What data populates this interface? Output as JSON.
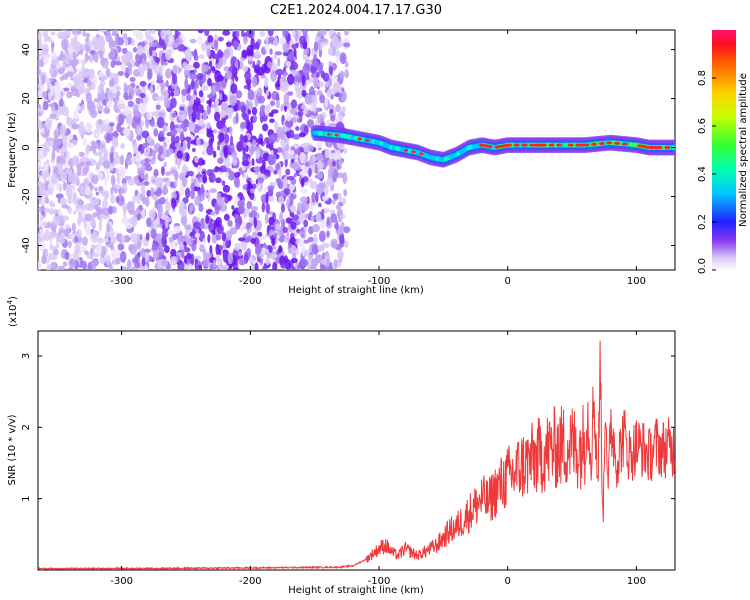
{
  "title": "C2E1.2024.004.17.17.G30",
  "chart_data": [
    {
      "type": "heatmap",
      "xlabel": "Height of straight line (km)",
      "ylabel": "Frequency (Hz)",
      "xlim": [
        -365,
        130
      ],
      "ylim": [
        -50,
        48
      ],
      "x_ticks": [
        -300,
        -200,
        -100,
        0,
        100
      ],
      "y_ticks": [
        -40,
        -20,
        0,
        20,
        40
      ],
      "signal_track": {
        "x": [
          -150,
          -130,
          -110,
          -100,
          -90,
          -80,
          -70,
          -60,
          -50,
          -40,
          -30,
          -20,
          -10,
          0,
          20,
          40,
          60,
          80,
          100,
          110,
          120,
          130
        ],
        "y": [
          6,
          5,
          3,
          2,
          0,
          -1,
          -2,
          -4,
          -5,
          -3,
          0,
          1,
          0,
          1,
          1,
          1,
          1,
          2,
          1,
          0,
          0,
          0
        ]
      },
      "noise_extent_x": [
        -365,
        -125
      ],
      "colorbar": {
        "label": "Normalized spectral amplitude",
        "range": [
          0,
          1
        ],
        "ticks": [
          "0.0",
          "0.2",
          "0.4",
          "0.6",
          "0.8"
        ]
      }
    },
    {
      "type": "line",
      "xlabel": "Height of straight line (km)",
      "ylabel": "SNR (10 * v/v)",
      "y_scale_label": "(x10",
      "y_scale_exp": "4",
      "y_scale_close": ")",
      "xlim": [
        -365,
        130
      ],
      "ylim": [
        0,
        3.35
      ],
      "x_ticks": [
        -300,
        -200,
        -100,
        0,
        100
      ],
      "y_ticks": [
        1,
        2,
        3
      ],
      "series": [
        {
          "color": "#ee3a3a",
          "x": [
            -365,
            -300,
            -200,
            -130,
            -120,
            -110,
            -100,
            -95,
            -90,
            -85,
            -80,
            -75,
            -70,
            -65,
            -60,
            -55,
            -50,
            -45,
            -40,
            -35,
            -30,
            -25,
            -20,
            -15,
            -10,
            -5,
            0,
            5,
            10,
            15,
            20,
            25,
            30,
            35,
            40,
            45,
            50,
            55,
            60,
            62,
            65,
            67,
            70,
            72,
            74,
            76,
            78,
            80,
            85,
            90,
            95,
            100,
            105,
            110,
            115,
            120,
            125,
            130
          ],
          "y": [
            0.02,
            0.02,
            0.03,
            0.04,
            0.06,
            0.15,
            0.3,
            0.35,
            0.25,
            0.2,
            0.3,
            0.25,
            0.2,
            0.25,
            0.3,
            0.35,
            0.45,
            0.55,
            0.6,
            0.7,
            0.8,
            0.9,
            1.0,
            0.95,
            1.1,
            1.2,
            1.3,
            1.35,
            1.45,
            1.5,
            1.55,
            1.6,
            1.65,
            1.7,
            1.72,
            1.75,
            1.75,
            1.7,
            1.8,
            2.2,
            1.6,
            2.5,
            1.2,
            2.9,
            0.6,
            2.6,
            1.0,
            2.1,
            1.5,
            1.9,
            1.6,
            1.75,
            1.7,
            1.6,
            1.75,
            1.7,
            1.72,
            1.7
          ]
        }
      ]
    }
  ]
}
